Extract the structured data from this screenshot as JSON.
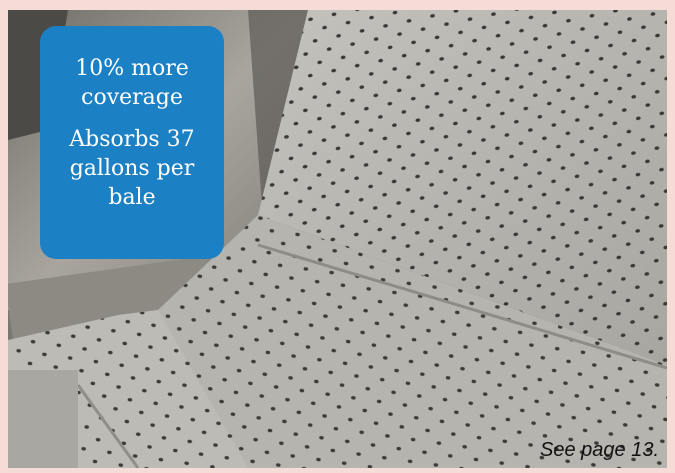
{
  "callout": {
    "line1": "10% more coverage",
    "line2": "Absorbs 37 gallons per bale",
    "background": "#1c80c4",
    "text_color": "#ffffff"
  },
  "caption": {
    "page_ref": "See page 13."
  },
  "photo": {
    "subject": "gray dimpled absorbent pads laid on floor next to metal container",
    "pad_color": "#b9b7b1",
    "dimple_color": "#3a3835"
  }
}
